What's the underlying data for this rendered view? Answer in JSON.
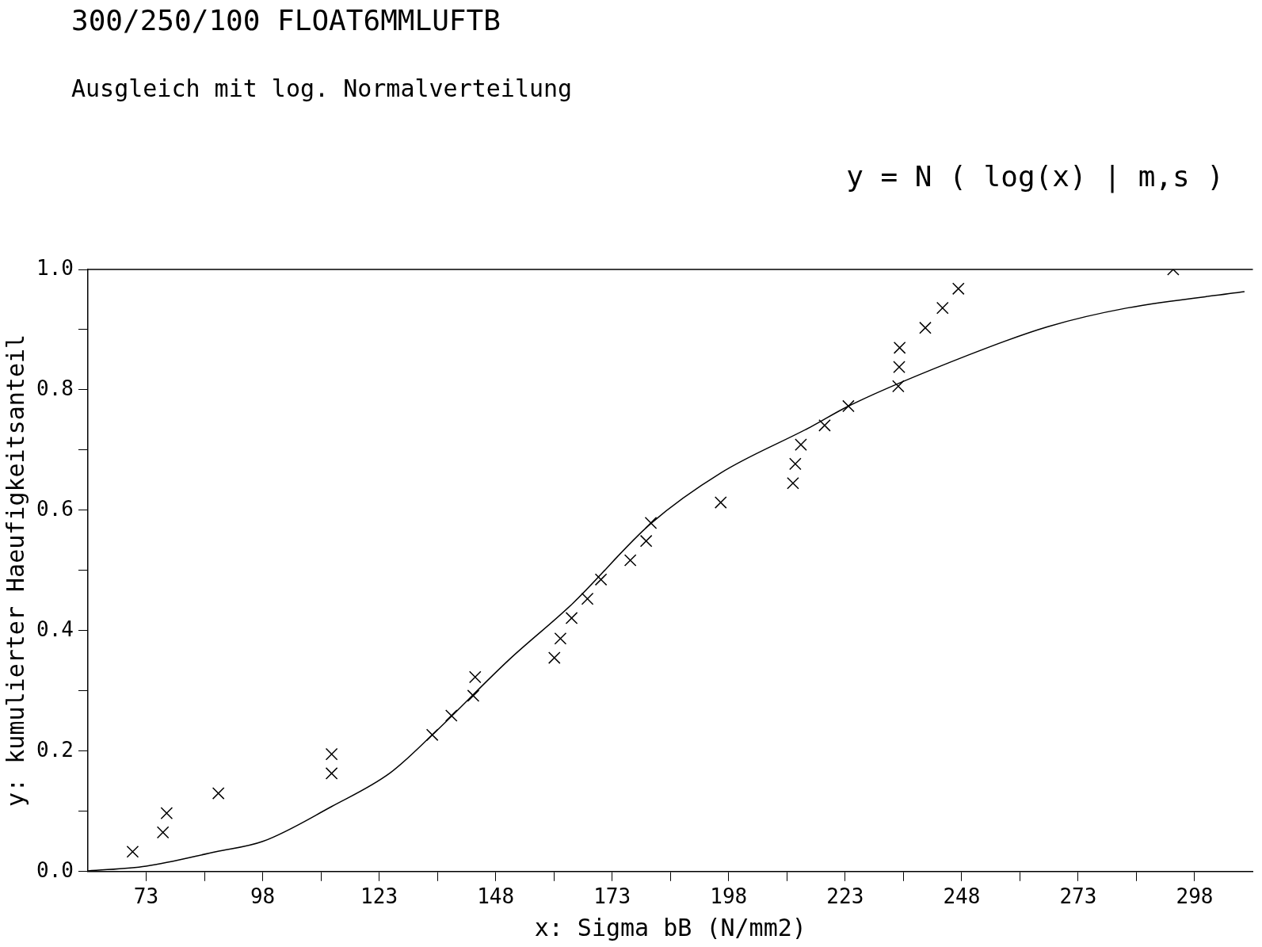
{
  "chart_data": {
    "type": "scatter",
    "title": "300/250/100 FLOAT6MMLUFTB",
    "subtitle": "Ausgleich mit log. Normalverteilung",
    "xlabel": "x: Sigma bB (N/mm2)",
    "ylabel": "y: kumulierter Haeufigkeitsanteil",
    "annotations": [
      "y = N ( log(x) | m,s )"
    ],
    "xlim": [
      60.5,
      310.5
    ],
    "xticks": [
      73,
      {
        "value": 85.5,
        "label": null
      },
      98,
      {
        "value": 110.5,
        "label": null
      },
      123,
      {
        "value": 135.5,
        "label": null
      },
      148,
      {
        "value": 160.5,
        "label": null
      },
      173,
      {
        "value": 185.5,
        "label": null
      },
      198,
      {
        "value": 210.5,
        "label": null
      },
      223,
      {
        "value": 235.5,
        "label": null
      },
      248,
      {
        "value": 260.5,
        "label": null
      },
      273,
      {
        "value": 285.5,
        "label": null
      },
      298
    ],
    "ylim": [
      0,
      1
    ],
    "yticks": [
      {
        "value": 0,
        "label": "0.0"
      },
      {
        "value": 0.1,
        "label": null
      },
      {
        "value": 0.2,
        "label": "0.2"
      },
      {
        "value": 0.3,
        "label": null
      },
      {
        "value": 0.4,
        "label": "0.4"
      },
      {
        "value": 0.5,
        "label": null
      },
      {
        "value": 0.6,
        "label": "0.6"
      },
      {
        "value": 0.7,
        "label": null
      },
      {
        "value": 0.8,
        "label": "0.8"
      },
      {
        "value": 0.9,
        "label": null
      },
      {
        "value": 1,
        "label": "1.0"
      }
    ],
    "grid": false,
    "legend": false,
    "series": [
      {
        "color": "#000000",
        "marker": "cross",
        "x": [
          70.1,
          76.6,
          77.4,
          88.5,
          112.8,
          112.8,
          134.4,
          138.5,
          143.2,
          143.6,
          160.6,
          161.9,
          164.3,
          167.7,
          170.6,
          176.9,
          180.3,
          181.3,
          196.3,
          211.8,
          212.3,
          213.5,
          218.6,
          223.7,
          234.4,
          234.6,
          234.7,
          240.2,
          243.9,
          247.3,
          293.4
        ],
        "values": [
          0.033,
          0.065,
          0.097,
          0.13,
          0.163,
          0.195,
          0.227,
          0.259,
          0.292,
          0.323,
          0.355,
          0.387,
          0.421,
          0.453,
          0.485,
          0.517,
          0.549,
          0.579,
          0.613,
          0.645,
          0.677,
          0.709,
          0.741,
          0.773,
          0.806,
          0.838,
          0.87,
          0.903,
          0.936,
          0.968,
          1.0
        ]
      },
      {
        "type": "line",
        "color": "#000000",
        "marker": "none",
        "line_style": "solid",
        "x": [
          60.5,
          73,
          88,
          98,
          112.8,
          125.4,
          134.4,
          150.9,
          164.5,
          181.3,
          196.3,
          215.5,
          223.7,
          249.5,
          266.5,
          283.5,
          308.7
        ],
        "values": [
          0.001,
          0.009,
          0.033,
          0.05,
          0.108,
          0.164,
          0.227,
          0.352,
          0.445,
          0.578,
          0.662,
          0.738,
          0.773,
          0.858,
          0.905,
          0.936,
          0.963
        ]
      }
    ]
  }
}
